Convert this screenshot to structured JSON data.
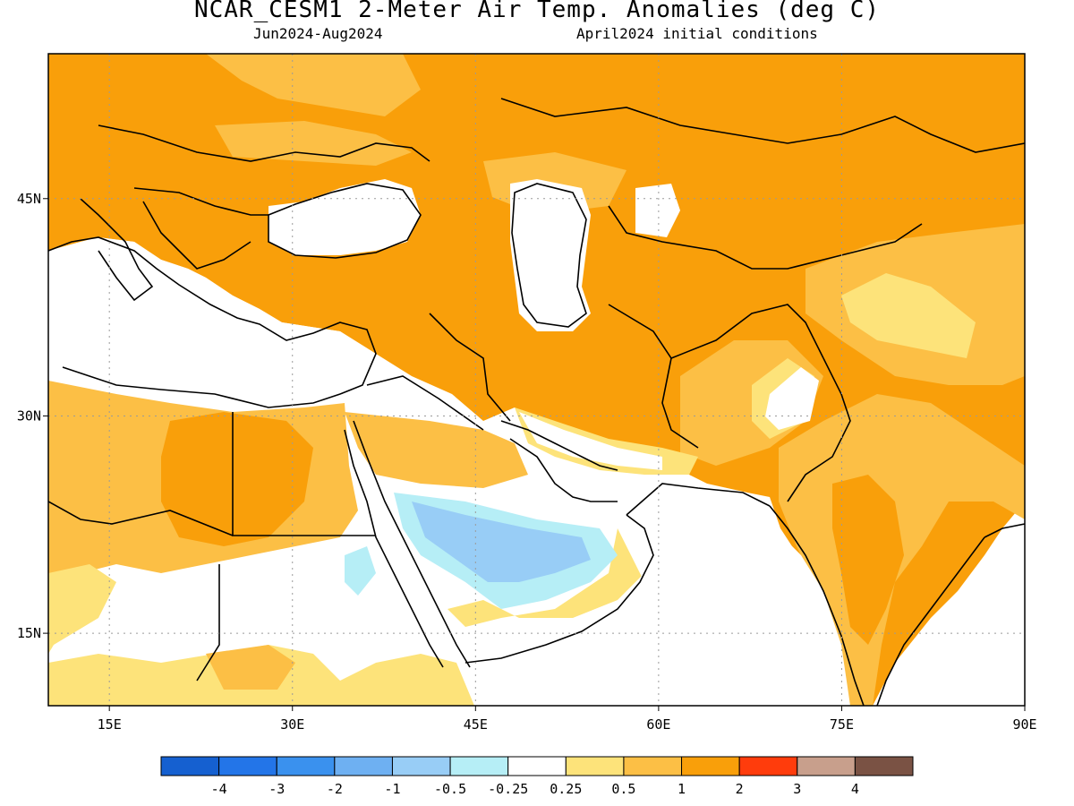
{
  "title": "NCAR_CESM1 2-Meter Air Temp. Anomalies (deg C)",
  "subtitle_left": "Jun2024-Aug2024",
  "subtitle_right": "April2024 initial conditions",
  "map": {
    "lon_range": [
      10,
      90
    ],
    "lat_range": [
      10,
      55
    ],
    "lon_ticks": [
      {
        "value": 15,
        "label": "15E"
      },
      {
        "value": 30,
        "label": "30E"
      },
      {
        "value": 45,
        "label": "45E"
      },
      {
        "value": 60,
        "label": "60E"
      },
      {
        "value": 75,
        "label": "75E"
      },
      {
        "value": 90,
        "label": "90E"
      }
    ],
    "lat_ticks": [
      {
        "value": 15,
        "label": "15N"
      },
      {
        "value": 30,
        "label": "30N"
      },
      {
        "value": 45,
        "label": "45N"
      }
    ]
  },
  "colorbar": {
    "colors": [
      "#1560d0",
      "#2375e8",
      "#3a91ee",
      "#6eb0f2",
      "#98cdf6",
      "#b6eef6",
      "#ffffff",
      "#fde37a",
      "#fcbf45",
      "#f99f0a",
      "#ff3c0c",
      "#c89f8c",
      "#7a5244"
    ],
    "labels": [
      "-4",
      "-3",
      "-2",
      "-1",
      "-0.5",
      "-0.25",
      "0.25",
      "0.5",
      "1",
      "2",
      "3",
      "4"
    ]
  },
  "palette": {
    "orange": "#f99f0a",
    "light_orange": "#fcbf45",
    "yellow": "#fde37a",
    "light_blue": "#98cdf6",
    "cyan": "#b6eef6",
    "white": "#ffffff"
  }
}
